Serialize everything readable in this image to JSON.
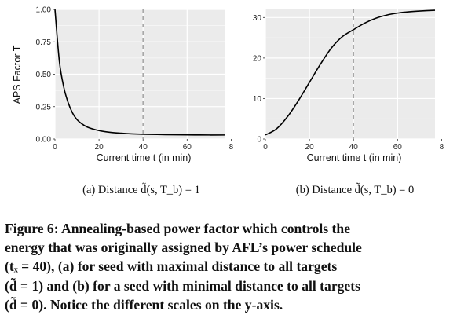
{
  "chart_data": [
    {
      "type": "line",
      "panel": "a",
      "subcaption": "(a) Distance d̃(s, T_b) = 1",
      "xlabel": "Current time t (in min)",
      "ylabel": "APS Factor T",
      "xticks": [
        "0",
        "20",
        "40",
        "60",
        "8"
      ],
      "yticks": [
        "0.00",
        "0.25",
        "0.50",
        "0.75",
        "1.00"
      ],
      "xlim": [
        0,
        77
      ],
      "ylim": [
        0,
        1.0
      ],
      "grid": true,
      "vline_x": 40,
      "series": [
        {
          "x": [
            0,
            2,
            4,
            6,
            8,
            10,
            12,
            15,
            20,
            25,
            30,
            35,
            40,
            50,
            60,
            70,
            77
          ],
          "y": [
            1.0,
            0.6,
            0.4,
            0.28,
            0.2,
            0.15,
            0.12,
            0.09,
            0.065,
            0.052,
            0.045,
            0.04,
            0.037,
            0.034,
            0.032,
            0.031,
            0.031
          ]
        }
      ]
    },
    {
      "type": "line",
      "panel": "b",
      "subcaption": "(b) Distance d̃(s, T_b) = 0",
      "xlabel": "Current time t (in min)",
      "ylabel": "",
      "xticks": [
        "0",
        "20",
        "40",
        "60",
        "8"
      ],
      "yticks": [
        "0",
        "10",
        "20",
        "30"
      ],
      "xlim": [
        0,
        77
      ],
      "ylim": [
        0,
        32
      ],
      "grid": true,
      "vline_x": 40,
      "series": [
        {
          "x": [
            0,
            5,
            10,
            15,
            20,
            25,
            30,
            35,
            40,
            45,
            50,
            55,
            60,
            65,
            70,
            77
          ],
          "y": [
            1.0,
            2.5,
            5.5,
            9.5,
            14.0,
            18.5,
            22.5,
            25.3,
            27.0,
            28.6,
            29.8,
            30.6,
            31.1,
            31.4,
            31.6,
            31.8
          ]
        }
      ]
    }
  ],
  "caption": {
    "lines": [
      "Figure 6: Annealing-based power factor which controls the",
      "energy that was originally assigned by AFL’s power schedule",
      "(tₓ = 40), (a) for seed with maximal distance to all targets",
      "(d̃ = 1) and (b) for a seed with minimal distance to all targets",
      "(d̃ = 0). Notice the different scales on the y-axis."
    ]
  }
}
